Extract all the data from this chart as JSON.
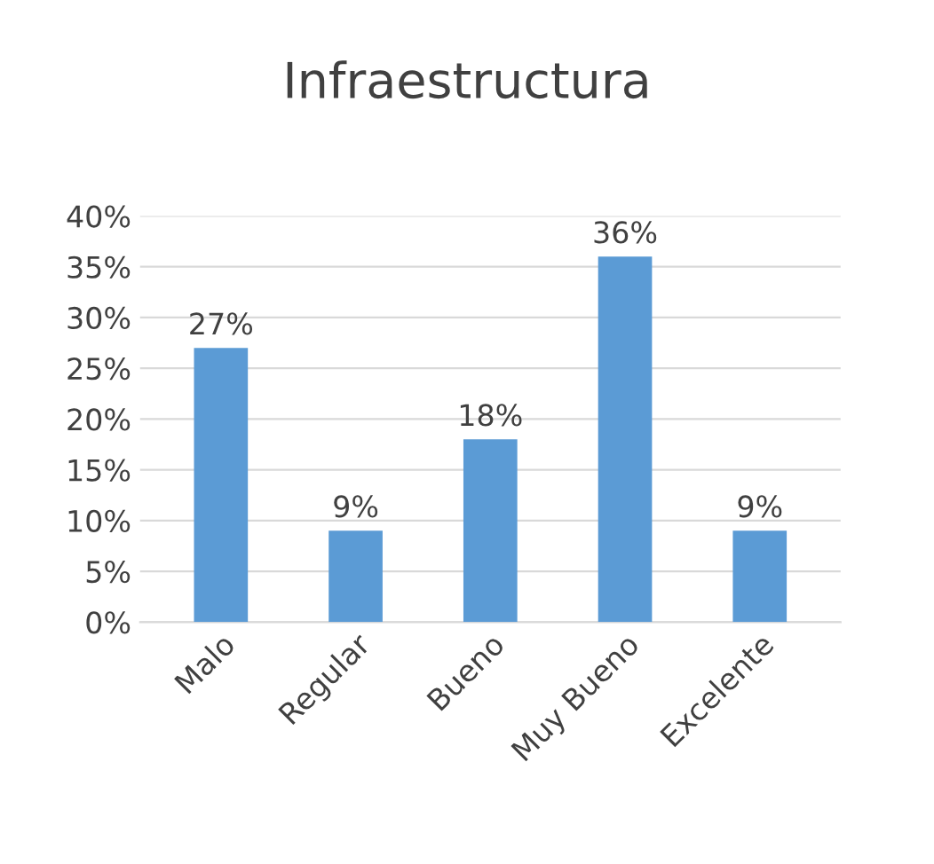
{
  "chart_data": {
    "type": "bar",
    "title": "Infraestructura",
    "categories": [
      "Malo",
      "Regular",
      "Bueno",
      "Muy Bueno",
      "Excelente"
    ],
    "values": [
      27,
      9,
      18,
      36,
      9
    ],
    "value_labels": [
      "27%",
      "9%",
      "18%",
      "36%",
      "9%"
    ],
    "color": "#5b9bd5",
    "ylim": [
      0,
      40
    ],
    "yticks": [
      {
        "value": 0,
        "label": "0%"
      },
      {
        "value": 5,
        "label": "5%"
      },
      {
        "value": 10,
        "label": "10%"
      },
      {
        "value": 15,
        "label": "15%"
      },
      {
        "value": 20,
        "label": "20%"
      },
      {
        "value": 25,
        "label": "25%"
      },
      {
        "value": 30,
        "label": "30%"
      },
      {
        "value": 35,
        "label": "35%"
      },
      {
        "value": 40,
        "label": "40%"
      }
    ],
    "grid": "y",
    "legend": false
  }
}
